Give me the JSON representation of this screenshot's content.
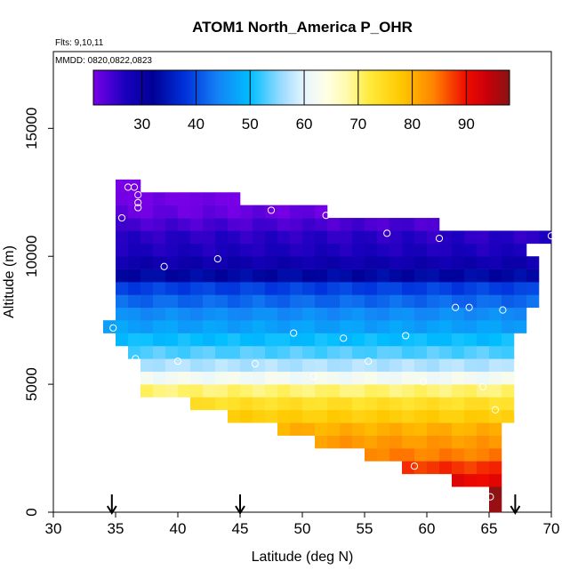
{
  "chart_data": {
    "type": "heatmap",
    "title": "ATOM1 North_America P_OHR",
    "flights_label": "Flts: 9,10,11",
    "dates_label": "MMDD: 0820,0822,0823",
    "xlabel": "Latitude (deg N)",
    "ylabel": "Altitude (m)",
    "xlim": [
      30,
      70
    ],
    "ylim": [
      0,
      18000
    ],
    "xticks": [
      "30",
      "35",
      "40",
      "45",
      "50",
      "55",
      "60",
      "65",
      "70"
    ],
    "yticks": [
      "0",
      "5000",
      "10000",
      "15000"
    ],
    "colorbar": {
      "range": [
        21,
        98
      ],
      "ticks": [
        "30",
        "40",
        "50",
        "60",
        "70",
        "80",
        "90"
      ]
    },
    "cell_size": {
      "lat": 1,
      "alt_m": 500
    },
    "rows": [
      {
        "alt": 250,
        "lat_start": 65,
        "lat_end": 66,
        "value": 97
      },
      {
        "alt": 750,
        "lat_start": 65,
        "lat_end": 66,
        "value": 97
      },
      {
        "alt": 1250,
        "lat_start": 62,
        "lat_end": 66,
        "value": 91
      },
      {
        "alt": 1750,
        "lat_start": 58,
        "lat_end": 66,
        "value": 88
      },
      {
        "alt": 2250,
        "lat_start": 55,
        "lat_end": 66,
        "value": 84
      },
      {
        "alt": 2750,
        "lat_start": 51,
        "lat_end": 66,
        "value": 82
      },
      {
        "alt": 3250,
        "lat_start": 48,
        "lat_end": 66,
        "value": 80
      },
      {
        "alt": 3750,
        "lat_start": 44,
        "lat_end": 67,
        "value": 77
      },
      {
        "alt": 4250,
        "lat_start": 41,
        "lat_end": 67,
        "value": 74
      },
      {
        "alt": 4750,
        "lat_start": 37,
        "lat_end": 67,
        "value": 70
      },
      {
        "alt": 5250,
        "lat_start": 37,
        "lat_end": 67,
        "value": 62
      },
      {
        "alt": 5750,
        "lat_start": 37,
        "lat_end": 67,
        "value": 57
      },
      {
        "alt": 6250,
        "lat_start": 36,
        "lat_end": 67,
        "value": 53
      },
      {
        "alt": 6750,
        "lat_start": 35,
        "lat_end": 67,
        "value": 50
      },
      {
        "alt": 7250,
        "lat_start": 34,
        "lat_end": 68,
        "value": 47
      },
      {
        "alt": 7750,
        "lat_start": 35,
        "lat_end": 68,
        "value": 45
      },
      {
        "alt": 8250,
        "lat_start": 35,
        "lat_end": 69,
        "value": 42
      },
      {
        "alt": 8750,
        "lat_start": 35,
        "lat_end": 69,
        "value": 39
      },
      {
        "alt": 9250,
        "lat_start": 35,
        "lat_end": 69,
        "value": 33
      },
      {
        "alt": 9750,
        "lat_start": 35,
        "lat_end": 69,
        "value": 29
      },
      {
        "alt": 10250,
        "lat_start": 35,
        "lat_end": 68,
        "value": 27
      },
      {
        "alt": 10750,
        "lat_start": 35,
        "lat_end": 70,
        "value": 26
      },
      {
        "alt": 11250,
        "lat_start": 35,
        "lat_end": 61,
        "value": 24
      },
      {
        "alt": 11750,
        "lat_start": 35,
        "lat_end": 52,
        "value": 22
      },
      {
        "alt": 12250,
        "lat_start": 35,
        "lat_end": 45,
        "value": 21
      },
      {
        "alt": 12750,
        "lat_start": 35,
        "lat_end": 37,
        "value": 21
      }
    ],
    "sample_points": [
      {
        "lat": 34.8,
        "alt": 7200
      },
      {
        "lat": 35.5,
        "alt": 11500
      },
      {
        "lat": 36.0,
        "alt": 12700
      },
      {
        "lat": 36.5,
        "alt": 12700
      },
      {
        "lat": 36.8,
        "alt": 12400
      },
      {
        "lat": 36.8,
        "alt": 12100
      },
      {
        "lat": 36.8,
        "alt": 11900
      },
      {
        "lat": 36.6,
        "alt": 6000
      },
      {
        "lat": 38.9,
        "alt": 9600
      },
      {
        "lat": 40.0,
        "alt": 5900
      },
      {
        "lat": 43.2,
        "alt": 9900
      },
      {
        "lat": 46.2,
        "alt": 5800
      },
      {
        "lat": 47.5,
        "alt": 11800
      },
      {
        "lat": 49.3,
        "alt": 7000
      },
      {
        "lat": 50.9,
        "alt": 5300
      },
      {
        "lat": 51.9,
        "alt": 11600
      },
      {
        "lat": 53.3,
        "alt": 6800
      },
      {
        "lat": 55.3,
        "alt": 5900
      },
      {
        "lat": 56.8,
        "alt": 10900
      },
      {
        "lat": 58.3,
        "alt": 6900
      },
      {
        "lat": 59.7,
        "alt": 5100
      },
      {
        "lat": 61.0,
        "alt": 10700
      },
      {
        "lat": 62.3,
        "alt": 8000
      },
      {
        "lat": 63.4,
        "alt": 8000
      },
      {
        "lat": 64.5,
        "alt": 4900
      },
      {
        "lat": 65.5,
        "alt": 4000
      },
      {
        "lat": 66.1,
        "alt": 7900
      },
      {
        "lat": 59.0,
        "alt": 1800
      },
      {
        "lat": 65.1,
        "alt": 600
      },
      {
        "lat": 70.0,
        "alt": 10800
      }
    ],
    "arrows": [
      34.7,
      45.0,
      67.1
    ]
  }
}
